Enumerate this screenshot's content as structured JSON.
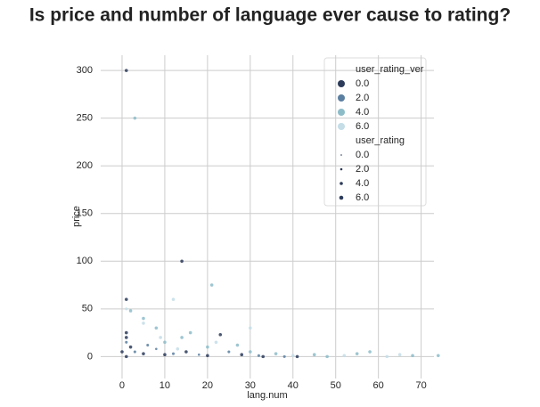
{
  "chart_data": {
    "type": "scatter",
    "title": "Is price and number of language ever cause to rating?",
    "x_label": "lang.num",
    "y_label": "price",
    "xlim": [
      -5,
      73
    ],
    "ylim": [
      -23,
      316
    ],
    "xticks": [
      0,
      10,
      20,
      30,
      40,
      50,
      60,
      70
    ],
    "yticks": [
      0,
      50,
      100,
      150,
      200,
      250,
      300
    ],
    "grid": true,
    "legend_position": "upper-right",
    "hue_title": "user_rating_ver",
    "size_title": "user_rating",
    "size_legend": [
      {
        "value": 0,
        "label": "0.0"
      },
      {
        "value": 2,
        "label": "2.0"
      },
      {
        "value": 4,
        "label": "4.0"
      },
      {
        "value": 6,
        "label": "6.0"
      }
    ],
    "series": [
      {
        "name": "0.0",
        "color": "#2c3b5a",
        "x": [
          1,
          14,
          1,
          23,
          1,
          1,
          2,
          0,
          5,
          10,
          15,
          20,
          28,
          33,
          41,
          1
        ],
        "values": [
          300,
          100,
          60,
          23,
          25,
          20,
          10,
          5,
          3,
          2,
          5,
          1,
          2,
          0,
          0,
          0
        ],
        "sizes": [
          4,
          4,
          4,
          4,
          4,
          4,
          4,
          4,
          4,
          4,
          4,
          4,
          4,
          4,
          4,
          4
        ]
      },
      {
        "name": "2.0",
        "color": "#5b7fa0",
        "x": [
          1,
          3,
          8,
          12,
          18,
          25,
          32,
          38,
          6
        ],
        "values": [
          15,
          5,
          8,
          3,
          2,
          5,
          1,
          0,
          12
        ],
        "sizes": [
          3,
          3,
          2,
          3,
          2,
          3,
          3,
          3,
          3
        ]
      },
      {
        "name": "4.0",
        "color": "#8dbcc9",
        "x": [
          3,
          21,
          5,
          2,
          8,
          16,
          10,
          14,
          20,
          27,
          30,
          36,
          45,
          55,
          58,
          68,
          74,
          48
        ],
        "values": [
          250,
          75,
          40,
          48,
          30,
          25,
          15,
          20,
          10,
          12,
          5,
          3,
          2,
          3,
          5,
          1,
          1,
          0
        ],
        "sizes": [
          4,
          4,
          4,
          4,
          4,
          4,
          4,
          4,
          4,
          4,
          4,
          4,
          4,
          4,
          4,
          4,
          4,
          4
        ]
      },
      {
        "name": "6.0",
        "color": "#c4dde7",
        "x": [
          12,
          1,
          30,
          5,
          9,
          22,
          13,
          40,
          62,
          52,
          65
        ],
        "values": [
          60,
          50,
          30,
          35,
          20,
          15,
          8,
          1,
          0,
          1,
          2
        ],
        "sizes": [
          4,
          3,
          4,
          4,
          4,
          4,
          4,
          4,
          4,
          4,
          4
        ]
      }
    ]
  }
}
